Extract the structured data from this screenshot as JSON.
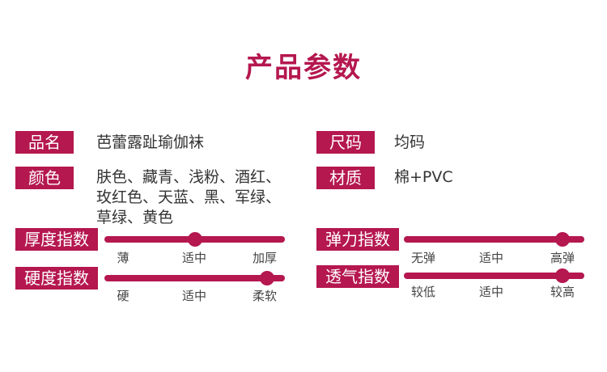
{
  "title": "产品参数",
  "accent_color": "#b5174f",
  "fields": {
    "name": {
      "label": "品名",
      "value": "芭蕾露趾瑜伽袜"
    },
    "size": {
      "label": "尺码",
      "value": "均码"
    },
    "color": {
      "label": "颜色",
      "value_lines": [
        "肤色、藏青、浅粉、酒红、",
        "玫红色、天蓝、黑、军绿、",
        "草绿、黄色"
      ]
    },
    "material": {
      "label": "材质",
      "value": "棉+PVC"
    }
  },
  "indices": {
    "thickness": {
      "label": "厚度指数",
      "ticks": [
        "薄",
        "适中",
        "加厚"
      ],
      "level": 0.5
    },
    "hardness": {
      "label": "硬度指数",
      "ticks": [
        "硬",
        "适中",
        "柔软"
      ],
      "level": 0.9
    },
    "elasticity": {
      "label": "弹力指数",
      "ticks": [
        "无弹",
        "适中",
        "高弹"
      ],
      "level": 0.88
    },
    "breathability": {
      "label": "透气指数",
      "ticks": [
        "较低",
        "适中",
        "较高"
      ],
      "level": 0.88
    }
  }
}
